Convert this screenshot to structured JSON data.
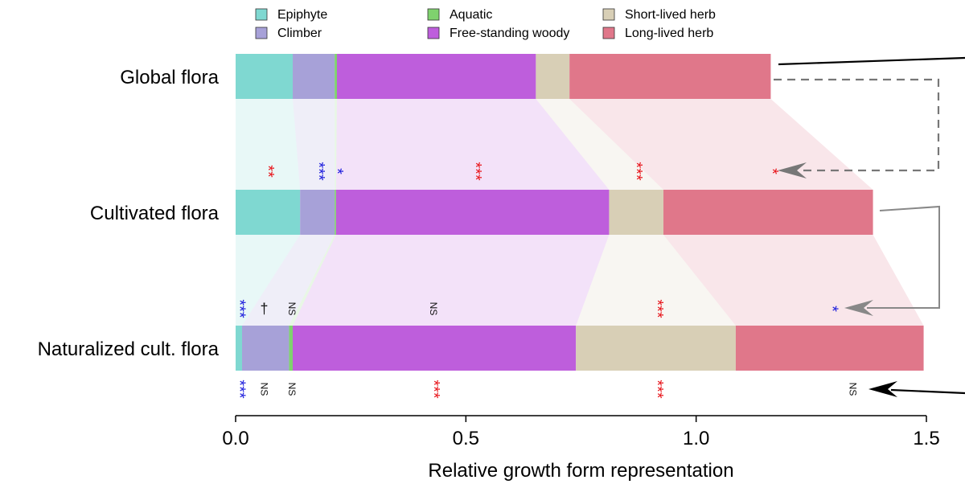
{
  "chart_data": {
    "type": "bar",
    "orientation": "horizontal",
    "stacked": true,
    "xlabel": "Relative growth form representation",
    "xlim": [
      0,
      1.5
    ],
    "xticks": [
      "0.0",
      "0.5",
      "1.0",
      "1.5"
    ],
    "xtick_values": [
      0,
      0.5,
      1.0,
      1.5
    ],
    "legend": {
      "placement": "top",
      "entries": [
        {
          "name": "Epiphyte",
          "color": "#7fd8d1"
        },
        {
          "name": "Climber",
          "color": "#a7a1d8"
        },
        {
          "name": "Aquatic",
          "color": "#7fd26e"
        },
        {
          "name": "Free-standing woody",
          "color": "#be5edc"
        },
        {
          "name": "Short-lived herb",
          "color": "#d8cfb6"
        },
        {
          "name": "Long-lived herb",
          "color": "#e0778a"
        }
      ]
    },
    "categories": [
      "Global flora",
      "Cultivated flora",
      "Naturalized cult. flora"
    ],
    "series": [
      {
        "name": "Epiphyte",
        "color": "#7fd8d1",
        "values": [
          0.124,
          0.14,
          0.014
        ]
      },
      {
        "name": "Climber",
        "color": "#a7a1d8",
        "values": [
          0.091,
          0.075,
          0.102
        ]
      },
      {
        "name": "Aquatic",
        "color": "#7fd26e",
        "values": [
          0.005,
          0.003,
          0.008
        ]
      },
      {
        "name": "Free-standing woody",
        "color": "#be5edc",
        "values": [
          0.432,
          0.593,
          0.615
        ]
      },
      {
        "name": "Short-lived herb",
        "color": "#d8cfb6",
        "values": [
          0.073,
          0.118,
          0.347
        ]
      },
      {
        "name": "Long-lived herb",
        "color": "#e0778a",
        "values": [
          0.437,
          0.455,
          0.408
        ]
      }
    ],
    "significance": {
      "between_global_and_cultivated": [
        {
          "x": 0.07,
          "label": "**",
          "color": "#e8191f",
          "kind": "star"
        },
        {
          "x": 0.18,
          "label": "***",
          "color": "#2222dd",
          "kind": "star"
        },
        {
          "x": 0.22,
          "label": "*",
          "color": "#2222dd",
          "kind": "star"
        },
        {
          "x": 0.52,
          "label": "***",
          "color": "#e8191f",
          "kind": "star"
        },
        {
          "x": 0.87,
          "label": "***",
          "color": "#e8191f",
          "kind": "star"
        },
        {
          "x": 1.165,
          "label": "*",
          "color": "#e8191f",
          "kind": "star"
        }
      ],
      "between_cultivated_and_naturalized": [
        {
          "x": 0.008,
          "label": "***",
          "color": "#2222dd",
          "kind": "star"
        },
        {
          "x": 0.062,
          "label": "†",
          "color": "#111111",
          "kind": "dagger"
        },
        {
          "x": 0.122,
          "label": "NS",
          "color": "#111111",
          "kind": "ns"
        },
        {
          "x": 0.43,
          "label": "NS",
          "color": "#111111",
          "kind": "ns"
        },
        {
          "x": 0.915,
          "label": "***",
          "color": "#e8191f",
          "kind": "star"
        },
        {
          "x": 1.295,
          "label": "*",
          "color": "#2222dd",
          "kind": "star"
        }
      ],
      "below_naturalized": [
        {
          "x": 0.008,
          "label": "***",
          "color": "#2222dd",
          "kind": "star"
        },
        {
          "x": 0.062,
          "label": "NS",
          "color": "#111111",
          "kind": "ns"
        },
        {
          "x": 0.122,
          "label": "NS",
          "color": "#111111",
          "kind": "ns"
        },
        {
          "x": 0.43,
          "label": "***",
          "color": "#e8191f",
          "kind": "star"
        },
        {
          "x": 0.915,
          "label": "***",
          "color": "#e8191f",
          "kind": "star"
        },
        {
          "x": 1.34,
          "label": "NS",
          "color": "#111111",
          "kind": "ns"
        }
      ]
    }
  }
}
